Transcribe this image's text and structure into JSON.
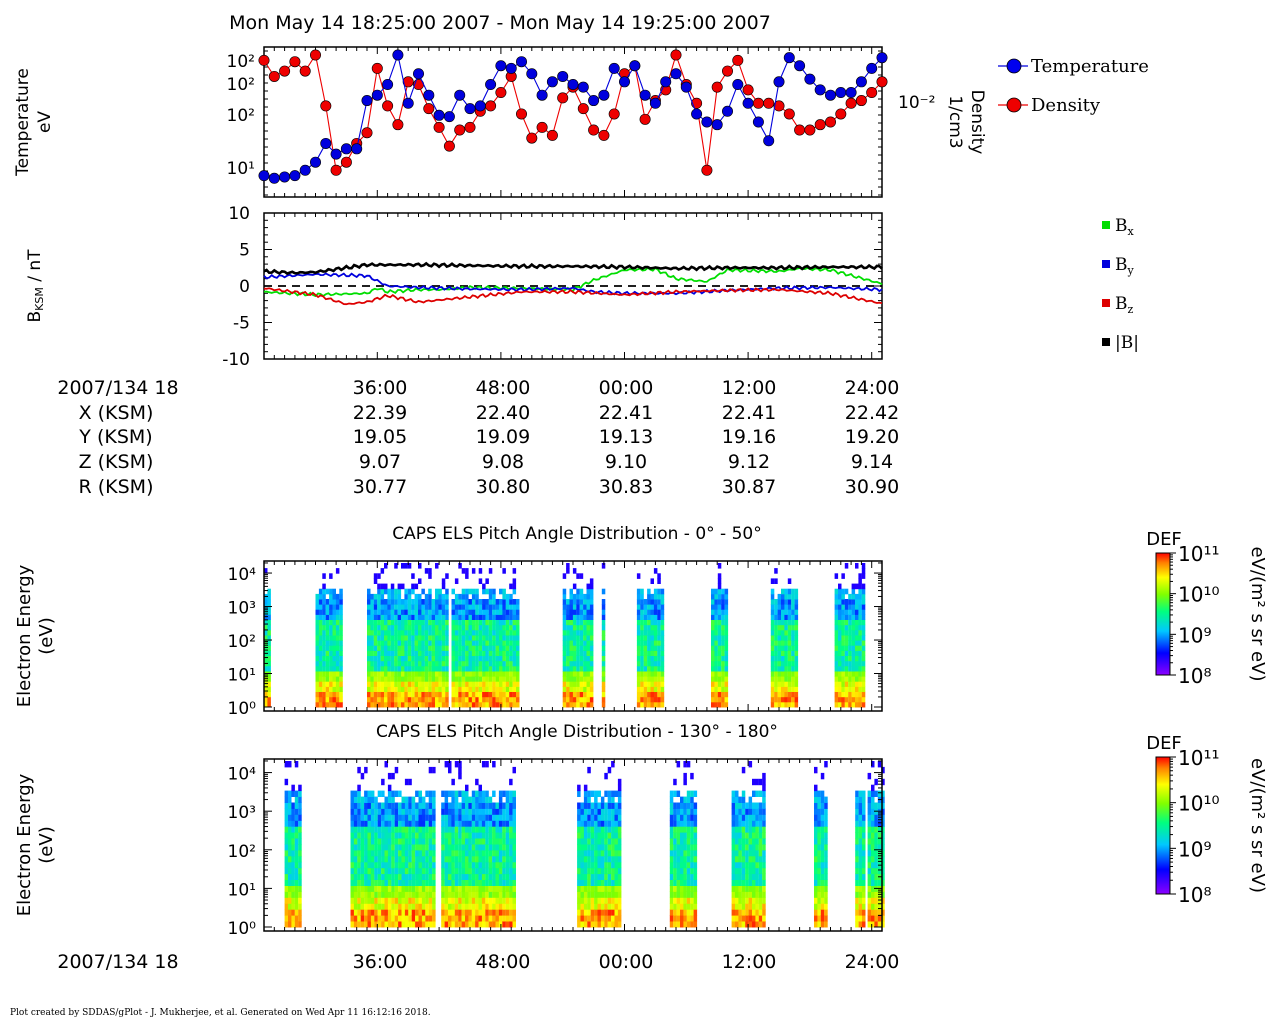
{
  "header": {
    "title": "Mon May 14 18:25:00 2007 - Mon May 14 19:25:00 2007"
  },
  "footer": {
    "credit": "Plot created by SDDAS/gPlot - J. Mukherjee, et al.  Generated on Wed Apr 11 16:12:16 2018."
  },
  "colors": {
    "temperature": "#0000dd",
    "density": "#ee0000",
    "bx": "#00dd00",
    "by": "#0000dd",
    "bz": "#dd0000",
    "btot": "#000000"
  },
  "chart_data": [
    {
      "id": "moments",
      "type": "line",
      "x_unit": "minutes after 18:25",
      "ylabel": [
        "Temperature",
        "eV"
      ],
      "ylabel_right": [
        "Density",
        "1/cm3"
      ],
      "y_scale": "log",
      "y_ticks": [
        "10²",
        "10²",
        "10²",
        "10¹"
      ],
      "y_ticks_right": [
        "10⁻²"
      ],
      "legend_placement": "right",
      "series": [
        {
          "name": "Temperature",
          "x": [
            0,
            1,
            2,
            3,
            4,
            5,
            6,
            7,
            8,
            9,
            10,
            11,
            12,
            13,
            14,
            15,
            16,
            17,
            18,
            19,
            20,
            21,
            22,
            23,
            24,
            25,
            26,
            27,
            28,
            29,
            30,
            31,
            32,
            33,
            34,
            35,
            36,
            37,
            38,
            39,
            40,
            41,
            42,
            43,
            44,
            45,
            46,
            47,
            48,
            49,
            50,
            51,
            52,
            53,
            54,
            55,
            56,
            57,
            58,
            59,
            60
          ],
          "values": [
            0.1,
            0.08,
            0.09,
            0.1,
            0.14,
            0.2,
            0.34,
            0.26,
            0.3,
            0.3,
            0.66,
            0.7,
            0.78,
            1.0,
            0.64,
            0.86,
            0.7,
            0.55,
            0.54,
            0.7,
            0.6,
            0.62,
            0.78,
            0.92,
            0.9,
            0.95,
            0.86,
            0.7,
            0.8,
            0.84,
            0.78,
            0.76,
            0.66,
            0.7,
            0.9,
            0.8,
            0.92,
            0.7,
            0.64,
            0.8,
            0.86,
            0.76,
            0.56,
            0.5,
            0.48,
            0.58,
            0.78,
            0.64,
            0.5,
            0.36,
            0.8,
            0.98,
            0.92,
            0.82,
            0.74,
            0.7,
            0.72,
            0.72,
            0.8,
            0.9,
            0.98
          ]
        },
        {
          "name": "Density",
          "x": [
            0,
            1,
            2,
            3,
            4,
            5,
            6,
            7,
            8,
            9,
            10,
            11,
            12,
            13,
            14,
            15,
            16,
            17,
            18,
            19,
            20,
            21,
            22,
            23,
            24,
            25,
            26,
            27,
            28,
            29,
            30,
            31,
            32,
            33,
            34,
            35,
            36,
            37,
            38,
            39,
            40,
            41,
            42,
            43,
            44,
            45,
            46,
            47,
            48,
            49,
            50,
            51,
            52,
            53,
            54,
            55,
            56,
            57,
            58,
            59,
            60
          ],
          "values": [
            0.96,
            0.84,
            0.88,
            0.95,
            0.88,
            1.0,
            0.62,
            0.14,
            0.2,
            0.34,
            0.42,
            0.9,
            0.62,
            0.48,
            0.8,
            0.78,
            0.6,
            0.46,
            0.32,
            0.44,
            0.46,
            0.58,
            0.62,
            0.72,
            0.84,
            0.56,
            0.38,
            0.46,
            0.4,
            0.68,
            0.76,
            0.6,
            0.44,
            0.4,
            0.56,
            0.86,
            0.92,
            0.52,
            0.66,
            0.74,
            1.0,
            0.78,
            0.64,
            0.14,
            0.76,
            0.88,
            0.96,
            0.74,
            0.64,
            0.64,
            0.62,
            0.56,
            0.44,
            0.44,
            0.48,
            0.5,
            0.56,
            0.64,
            0.66,
            0.72,
            0.8
          ]
        }
      ]
    },
    {
      "id": "magnetic-field",
      "type": "line",
      "ylabel": "B_KSM / nT",
      "ylim": [
        -10,
        10
      ],
      "y_ticks": [
        "10",
        "5",
        "0",
        "-5",
        "-10"
      ],
      "zero_line": "dashed",
      "legend_placement": "right",
      "series": [
        {
          "name": "B",
          "sub": "x",
          "x": [
            0,
            5,
            10,
            11,
            12,
            15,
            17,
            20,
            25,
            30,
            32,
            35,
            38,
            40,
            43,
            45,
            50,
            52,
            55,
            60
          ],
          "values": [
            -0.8,
            -1.2,
            -1.0,
            -0.3,
            -0.8,
            -0.5,
            -0.5,
            -0.2,
            -0.3,
            -0.5,
            0.8,
            2.2,
            2.3,
            1.0,
            0.6,
            2.2,
            2.0,
            2.4,
            2.2,
            0.3
          ]
        },
        {
          "name": "B",
          "sub": "y",
          "x": [
            0,
            5,
            10,
            12,
            15,
            20,
            25,
            30,
            32,
            35,
            40,
            45,
            50,
            55,
            60
          ],
          "values": [
            1.2,
            1.6,
            1.4,
            0.0,
            -0.2,
            -0.4,
            -0.5,
            -0.3,
            -0.8,
            -1.0,
            -1.0,
            -0.6,
            -0.3,
            -0.2,
            -0.5
          ]
        },
        {
          "name": "B",
          "sub": "z",
          "x": [
            0,
            5,
            8,
            10,
            12,
            15,
            20,
            25,
            30,
            35,
            40,
            45,
            50,
            55,
            60
          ],
          "values": [
            -0.3,
            -1.2,
            -2.5,
            -2.2,
            -1.3,
            -2.2,
            -1.5,
            -0.8,
            -0.8,
            -1.2,
            -0.8,
            -0.6,
            -0.5,
            -1.0,
            -2.4
          ]
        },
        {
          "name": "|B|",
          "sub": "",
          "x": [
            0,
            3,
            5,
            8,
            10,
            15,
            20,
            25,
            30,
            35,
            40,
            45,
            50,
            55,
            60
          ],
          "values": [
            2.0,
            1.8,
            1.9,
            2.5,
            2.9,
            2.9,
            2.8,
            2.7,
            2.7,
            2.6,
            2.4,
            2.5,
            2.5,
            2.6,
            2.6
          ]
        }
      ]
    },
    {
      "id": "ephemeris",
      "type": "table",
      "row_labels": [
        "2007/134 18",
        "X (KSM)",
        "Y (KSM)",
        "Z (KSM)",
        "R (KSM)"
      ],
      "columns": [
        {
          "time": "36:00",
          "x": "22.39",
          "y": "19.05",
          "z": "9.07",
          "r": "30.77"
        },
        {
          "time": "48:00",
          "x": "22.40",
          "y": "19.09",
          "z": "9.08",
          "r": "30.80"
        },
        {
          "time": "00:00",
          "x": "22.41",
          "y": "19.13",
          "z": "9.10",
          "r": "30.83"
        },
        {
          "time": "12:00",
          "x": "22.41",
          "y": "19.16",
          "z": "9.12",
          "r": "30.87"
        },
        {
          "time": "24:00",
          "x": "22.42",
          "y": "19.20",
          "z": "9.14",
          "r": "30.90"
        }
      ]
    },
    {
      "id": "els-pad-0-50",
      "type": "heatmap",
      "title": "CAPS ELS Pitch Angle Distribution - 0° - 50°",
      "ylabel": [
        "Electron Energy",
        "(eV)"
      ],
      "y_scale": "log",
      "y_ticks": [
        "10⁴",
        "10³",
        "10²",
        "10¹",
        "10⁰"
      ],
      "colorbar": {
        "label": "DEF",
        "unit": "eV/(m² s sr eV)",
        "ticks": [
          "10¹¹",
          "10¹⁰",
          "10⁹",
          "10⁸"
        ]
      },
      "data_intervals_min": [
        [
          0,
          0.6
        ],
        [
          5.0,
          7.5
        ],
        [
          10.0,
          17.6
        ],
        [
          18.2,
          24.5
        ],
        [
          29.0,
          31.8
        ],
        [
          32.8,
          33.1
        ],
        [
          36.2,
          38.8
        ],
        [
          43.4,
          44.8
        ],
        [
          49.2,
          51.8
        ],
        [
          55.4,
          58.2
        ]
      ],
      "x_tick_labels": [
        "36:00",
        "48:00",
        "00:00",
        "12:00",
        "24:00"
      ]
    },
    {
      "id": "els-pad-130-180",
      "type": "heatmap",
      "title": "CAPS ELS Pitch Angle Distribution - 130° - 180°",
      "ylabel": [
        "Electron Energy",
        "(eV)"
      ],
      "y_scale": "log",
      "y_ticks": [
        "10⁴",
        "10³",
        "10²",
        "10¹",
        "10⁰"
      ],
      "colorbar": {
        "label": "DEF",
        "unit": "eV/(m² s sr eV)",
        "ticks": [
          "10¹¹",
          "10¹⁰",
          "10⁹",
          "10⁸"
        ]
      },
      "data_intervals_min": [
        [
          2.0,
          3.4
        ],
        [
          8.4,
          16.4
        ],
        [
          17.2,
          24.2
        ],
        [
          30.4,
          34.6
        ],
        [
          39.4,
          41.8
        ],
        [
          45.4,
          48.4
        ],
        [
          53.4,
          54.4
        ],
        [
          57.4,
          58.2
        ],
        [
          58.6,
          60.2
        ]
      ],
      "x_tick_labels": [
        "36:00",
        "48:00",
        "00:00",
        "12:00",
        "24:00"
      ],
      "x_row_label": "2007/134 18"
    }
  ]
}
